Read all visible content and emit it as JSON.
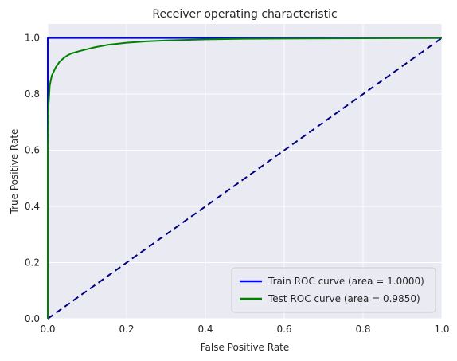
{
  "chart_data": {
    "type": "line",
    "title": "Receiver operating characteristic",
    "xlabel": "False Positive Rate",
    "ylabel": "True Positive Rate",
    "xlim": [
      0.0,
      1.0
    ],
    "ylim": [
      0.0,
      1.05
    ],
    "grid": true,
    "legend_position": "lower-right",
    "xticks": [
      "0.0",
      "0.2",
      "0.4",
      "0.6",
      "0.8",
      "1.0"
    ],
    "yticks": [
      "0.0",
      "0.2",
      "0.4",
      "0.6",
      "0.8",
      "1.0"
    ],
    "background_color": "#eaeaf2",
    "series": [
      {
        "name": "Train ROC curve (area = 1.0000)",
        "color": "#0000ff",
        "style": "solid",
        "x": [
          0.0,
          0.0,
          1.0
        ],
        "y": [
          0.0,
          1.0,
          1.0
        ]
      },
      {
        "name": "Test ROC curve (area = 0.9850)",
        "color": "#008000",
        "style": "solid",
        "x": [
          0.0,
          0.0,
          0.002,
          0.005,
          0.01,
          0.015,
          0.02,
          0.03,
          0.04,
          0.05,
          0.06,
          0.08,
          0.1,
          0.12,
          0.15,
          0.2,
          0.25,
          0.3,
          0.4,
          0.5,
          0.6,
          0.8,
          1.0
        ],
        "y": [
          0.0,
          0.6,
          0.76,
          0.83,
          0.865,
          0.88,
          0.895,
          0.915,
          0.928,
          0.938,
          0.945,
          0.953,
          0.96,
          0.967,
          0.975,
          0.983,
          0.988,
          0.991,
          0.995,
          0.997,
          0.998,
          0.999,
          1.0
        ]
      },
      {
        "name": "",
        "color": "#000080",
        "style": "dashed",
        "x": [
          0.0,
          1.0
        ],
        "y": [
          0.0,
          1.0
        ]
      }
    ]
  }
}
